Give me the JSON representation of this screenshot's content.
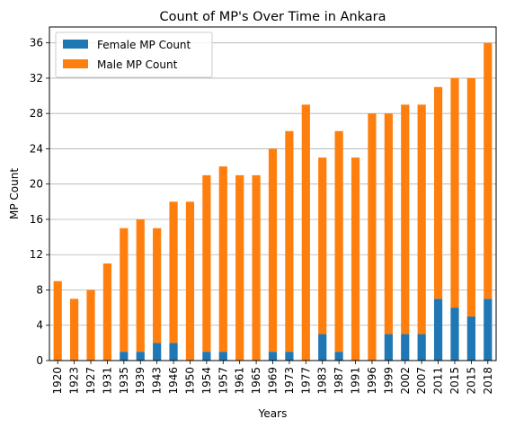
{
  "chart_data": {
    "type": "bar",
    "stacked": true,
    "title": "Count of MP's Over Time in Ankara",
    "xlabel": "Years",
    "ylabel": "MP Count",
    "ylim": [
      0,
      37.8
    ],
    "yticks": [
      0,
      4,
      8,
      12,
      16,
      20,
      24,
      28,
      32,
      36
    ],
    "grid": "horizontal",
    "legend_position": "top-left",
    "categories": [
      "1920",
      "1923",
      "1927",
      "1931",
      "1935",
      "1939",
      "1943",
      "1946",
      "1950",
      "1954",
      "1957",
      "1961",
      "1965",
      "1969",
      "1973",
      "1977",
      "1983",
      "1987",
      "1991",
      "1996",
      "1999",
      "2002",
      "2007",
      "2011",
      "2015",
      "2015",
      "2018"
    ],
    "series": [
      {
        "name": "Female MP Count",
        "color": "#1f77b4",
        "values": [
          0,
          0,
          0,
          0,
          1,
          1,
          2,
          2,
          0,
          1,
          1,
          0,
          0,
          1,
          1,
          0,
          3,
          1,
          0,
          0,
          3,
          3,
          3,
          7,
          6,
          5,
          7
        ]
      },
      {
        "name": "Male MP Count",
        "color": "#ff7f0e",
        "values": [
          9,
          7,
          8,
          11,
          14,
          15,
          13,
          16,
          18,
          20,
          21,
          21,
          21,
          23,
          25,
          29,
          20,
          25,
          23,
          28,
          25,
          26,
          26,
          24,
          26,
          27,
          29
        ]
      }
    ]
  }
}
